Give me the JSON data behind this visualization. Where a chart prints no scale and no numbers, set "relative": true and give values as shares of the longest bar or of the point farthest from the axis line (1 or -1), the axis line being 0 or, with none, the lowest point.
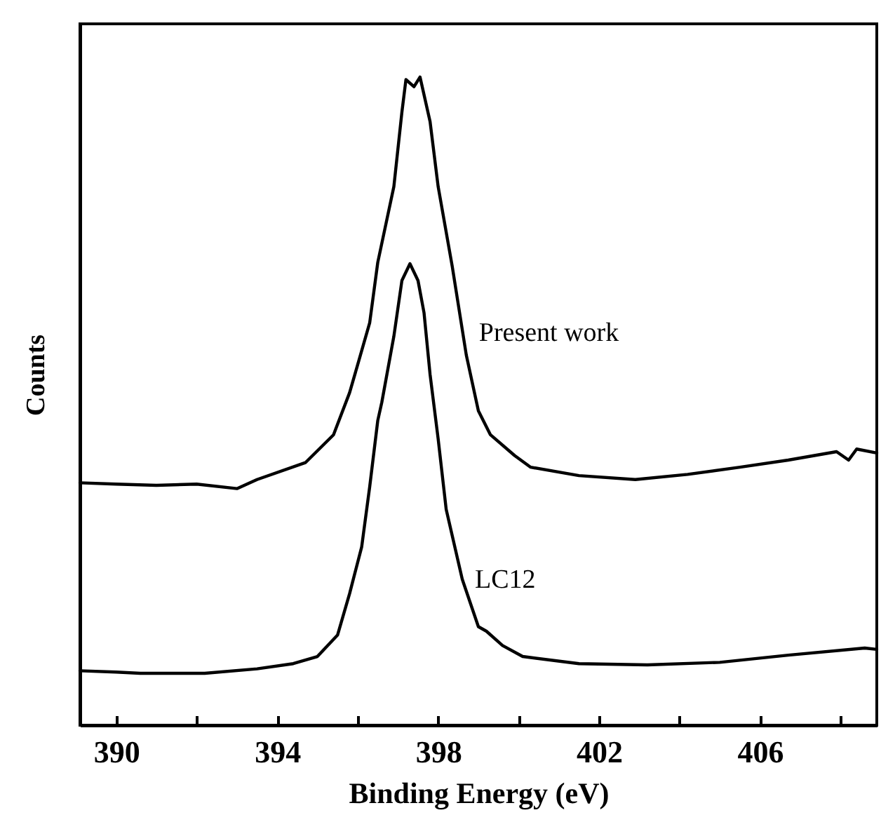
{
  "chart_data": {
    "type": "line",
    "relative": true,
    "xlabel": "Binding Energy  (eV)",
    "ylabel": "Counts",
    "xlim": [
      389.1,
      408.9
    ],
    "xticks": [
      390,
      {
        "value": 392,
        "label": null
      },
      394,
      {
        "value": 396,
        "label": null
      },
      398,
      {
        "value": 400,
        "label": null
      },
      402,
      {
        "value": 404,
        "label": null
      },
      406,
      {
        "value": 408,
        "label": null
      }
    ],
    "grid": false,
    "marker": "none",
    "line_style": "solid",
    "series": [
      {
        "name": "Present work",
        "color": "#000000",
        "x": [
          389.1,
          390,
          391,
          392,
          393,
          393.5,
          394.7,
          395.4,
          395.8,
          396.0,
          396.3,
          396.5,
          396.9,
          397.1,
          397.2,
          397.4,
          397.55,
          397.8,
          398.0,
          398.35,
          398.7,
          399.0,
          399.3,
          399.9,
          400.3,
          401.5,
          402.9,
          404.2,
          405.5,
          406.7,
          407.9,
          408.2,
          408.4,
          408.9
        ],
        "values": [
          0.374,
          0.372,
          0.37,
          0.372,
          0.365,
          0.379,
          0.405,
          0.448,
          0.513,
          0.556,
          0.621,
          0.714,
          0.831,
          0.946,
          0.996,
          0.985,
          1.0,
          0.931,
          0.831,
          0.708,
          0.571,
          0.485,
          0.448,
          0.416,
          0.398,
          0.385,
          0.379,
          0.387,
          0.398,
          0.409,
          0.422,
          0.409,
          0.426,
          0.42
        ]
      },
      {
        "name": "LC12",
        "color": "#000000",
        "x": [
          389.1,
          390,
          390.6,
          392.2,
          393.5,
          394.4,
          395.0,
          395.5,
          395.8,
          396.1,
          396.3,
          396.5,
          396.6,
          396.9,
          397.1,
          397.3,
          397.5,
          397.65,
          397.8,
          398.0,
          398.2,
          398.6,
          399.0,
          399.2,
          399.6,
          400.1,
          401.5,
          403.2,
          405.0,
          406.7,
          408.6,
          408.9
        ],
        "values": [
          0.084,
          0.082,
          0.08,
          0.08,
          0.087,
          0.095,
          0.106,
          0.139,
          0.203,
          0.275,
          0.368,
          0.47,
          0.498,
          0.6,
          0.686,
          0.712,
          0.686,
          0.636,
          0.541,
          0.442,
          0.333,
          0.225,
          0.152,
          0.145,
          0.123,
          0.106,
          0.095,
          0.093,
          0.097,
          0.108,
          0.119,
          0.117
        ]
      }
    ]
  }
}
